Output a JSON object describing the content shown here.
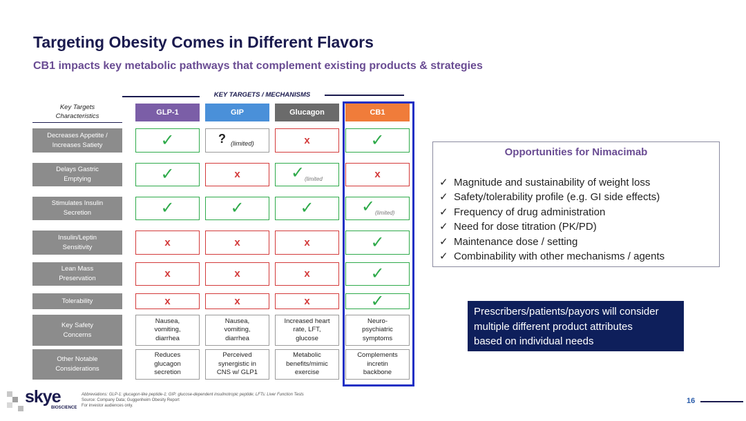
{
  "header": {
    "title": "Targeting Obesity Comes in Different Flavors",
    "subtitle": "CB1 impacts key metabolic pathways that complement existing products & strategies"
  },
  "table": {
    "group_label": "KEY TARGETS / MECHANISMS",
    "corner": [
      "Key Targets",
      "Characteristics"
    ],
    "columns": [
      {
        "name": "GLP-1",
        "color": "#7b5ea7"
      },
      {
        "name": "GIP",
        "color": "#4a90d9"
      },
      {
        "name": "Glucagon",
        "color": "#6b6b6b"
      },
      {
        "name": "CB1",
        "color": "#f07c3a"
      }
    ],
    "rows": [
      {
        "label": [
          "Decreases Appetite /",
          "Increases Satiety"
        ],
        "cells": [
          {
            "mark": "✓"
          },
          {
            "mark": "?",
            "note": "(limited)"
          },
          {
            "mark": "x"
          },
          {
            "mark": "✓"
          }
        ]
      },
      {
        "label": [
          "Delays Gastric",
          "Emptying"
        ],
        "cells": [
          {
            "mark": "✓"
          },
          {
            "mark": "x"
          },
          {
            "mark": "✓",
            "note": "(limited"
          },
          {
            "mark": "x"
          }
        ]
      },
      {
        "label": [
          "Stimulates Insulin",
          "Secretion"
        ],
        "cells": [
          {
            "mark": "✓"
          },
          {
            "mark": "✓"
          },
          {
            "mark": "✓"
          },
          {
            "mark": "✓",
            "note": "(limited)"
          }
        ]
      },
      {
        "label": [
          "Insulin/Leptin",
          "Sensitivity"
        ],
        "cells": [
          {
            "mark": "x"
          },
          {
            "mark": "x"
          },
          {
            "mark": "x"
          },
          {
            "mark": "✓"
          }
        ]
      },
      {
        "label": [
          "Lean Mass",
          "Preservation"
        ],
        "cells": [
          {
            "mark": "x"
          },
          {
            "mark": "x"
          },
          {
            "mark": "x"
          },
          {
            "mark": "✓"
          }
        ]
      },
      {
        "label": [
          "Tolerability"
        ],
        "cells": [
          {
            "mark": "x"
          },
          {
            "mark": "x"
          },
          {
            "mark": "x"
          },
          {
            "mark": "✓"
          }
        ]
      },
      {
        "label": [
          "Key Safety",
          "Concerns"
        ],
        "cells": [
          {
            "lines": [
              "Nausea,",
              "vomiting,",
              "diarrhea"
            ]
          },
          {
            "lines": [
              "Nausea,",
              "vomiting,",
              "diarrhea"
            ]
          },
          {
            "lines": [
              "Increased heart",
              "rate, LFT,",
              "glucose"
            ]
          },
          {
            "lines": [
              "Neuro-",
              "psychiatric",
              "symptoms"
            ]
          }
        ]
      },
      {
        "label": [
          "Other Notable",
          "Considerations"
        ],
        "cells": [
          {
            "lines": [
              "Reduces",
              "glucagon",
              "secretion"
            ]
          },
          {
            "lines": [
              "Perceived",
              "synergistic in",
              "CNS w/ GLP1"
            ]
          },
          {
            "lines": [
              "Metabolic",
              "benefits/mimic",
              "exercise"
            ]
          },
          {
            "lines": [
              "Complements",
              "incretin",
              "backbone"
            ]
          }
        ]
      }
    ]
  },
  "opportunities": {
    "title": "Opportunities for Nimacimab",
    "items": [
      "Magnitude and sustainability of weight loss",
      "Safety/tolerability profile (e.g. GI  side effects)",
      "Frequency of drug administration",
      "Need for dose titration (PK/PD)",
      "Maintenance dose / setting",
      "Combinability with other mechanisms / agents"
    ]
  },
  "callout": [
    "Prescribers/patients/payors will consider",
    "multiple different product attributes",
    "based on individual needs"
  ],
  "footer": {
    "logo": "skye",
    "logo_sub": "BIOSCIENCE",
    "notes": [
      "Abbreviations: GLP-1: glucagon-like peptide-1; GIP: glucose-dependent insulinotropic peptide; LFTs: Liver Function Tests",
      "Source: Company Data; Guggenheim Obesity Report",
      "For investor audiences only."
    ],
    "page": "16"
  }
}
